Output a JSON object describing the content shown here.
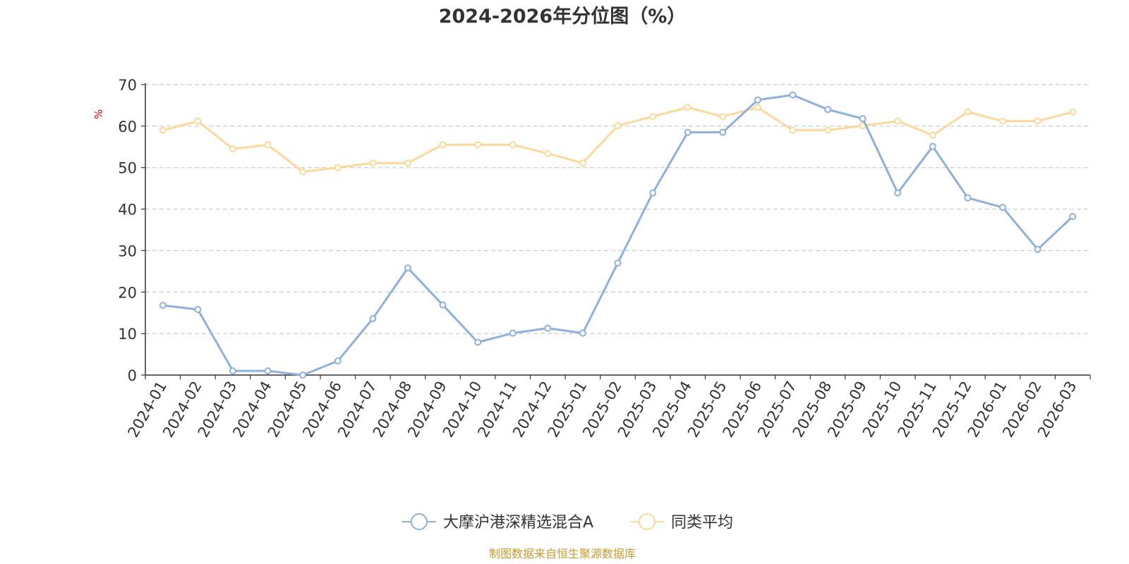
{
  "chart_data": {
    "type": "line",
    "title": "2024-2026年分位图（%）",
    "ylabel": "%",
    "ylim": [
      0,
      70
    ],
    "yticks": [
      0,
      10,
      20,
      30,
      40,
      50,
      60,
      70
    ],
    "grid": true,
    "legend_position": "bottom-center",
    "categories": [
      "2024-01",
      "2024-02",
      "2024-03",
      "2024-04",
      "2024-05",
      "2024-06",
      "2024-07",
      "2024-08",
      "2024-09",
      "2024-10",
      "2024-11",
      "2024-12",
      "2025-01",
      "2025-02",
      "2025-03",
      "2025-04",
      "2025-05",
      "2025-06",
      "2025-07",
      "2025-08",
      "2025-09",
      "2025-10",
      "2025-11",
      "2025-12",
      "2026-01",
      "2026-02",
      "2026-03"
    ],
    "series": [
      {
        "name": "大摩沪港深精选混合A",
        "color": "#8eb0dc",
        "values": [
          16.8,
          15.8,
          1.0,
          1.0,
          0.0,
          3.4,
          13.6,
          25.8,
          16.9,
          7.9,
          10.1,
          11.3,
          10.1,
          27.0,
          43.9,
          58.5,
          58.5,
          66.3,
          67.5,
          64.0,
          61.8,
          43.9,
          55.1,
          42.7,
          40.4,
          30.3,
          38.2
        ]
      },
      {
        "name": "同类平均",
        "color": "#fcd99a",
        "values": [
          59.0,
          61.2,
          54.5,
          55.5,
          49.0,
          50.0,
          51.1,
          51.1,
          55.5,
          55.5,
          55.5,
          53.4,
          51.1,
          60.1,
          62.3,
          64.5,
          62.3,
          64.5,
          59.0,
          59.0,
          60.1,
          61.2,
          57.8,
          63.4,
          61.2,
          61.2,
          63.4
        ]
      }
    ],
    "source": "制图数据来自恒生聚源数据库",
    "source_color": "#c99a2e",
    "unit_color": "#e60000"
  }
}
